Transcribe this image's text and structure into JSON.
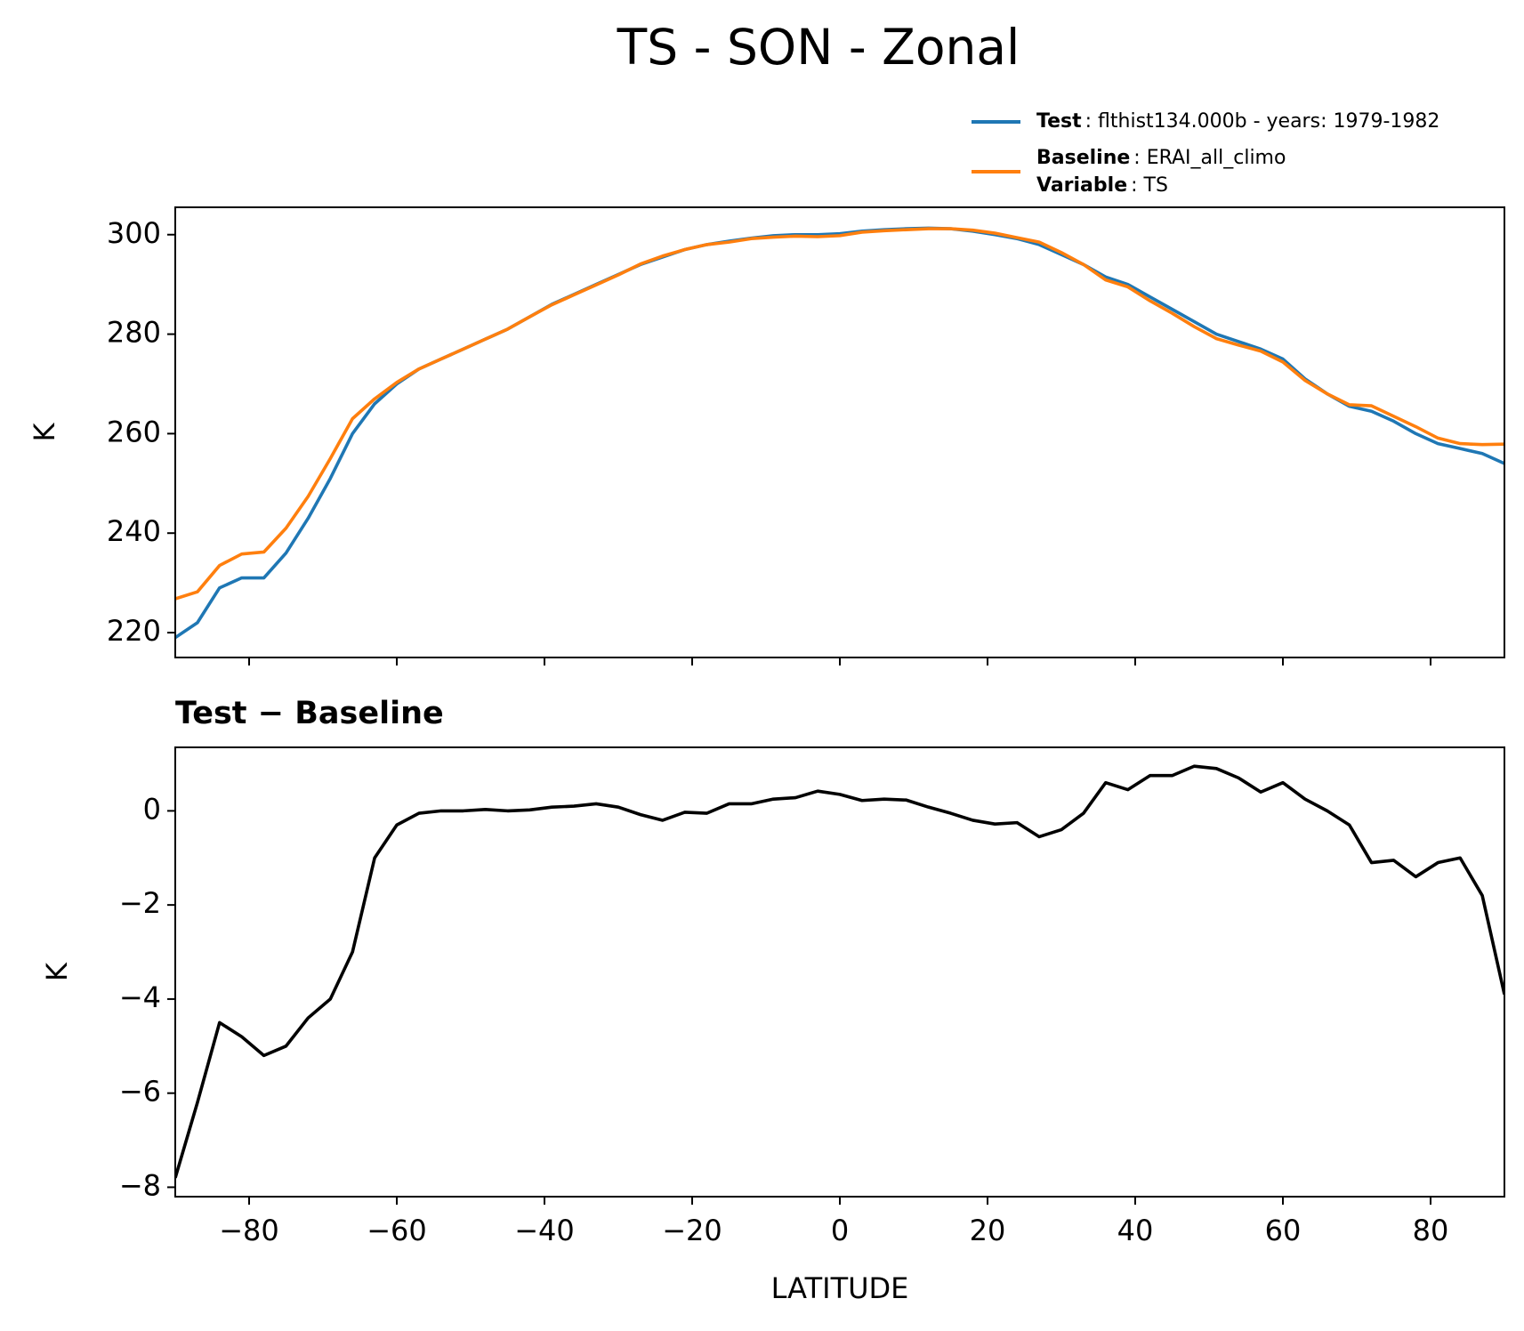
{
  "chart_data": [
    {
      "type": "line",
      "title": "TS - SON - Zonal",
      "ylabel": "K",
      "x": [
        -90,
        -87,
        -84,
        -81,
        -78,
        -75,
        -72,
        -69,
        -66,
        -63,
        -60,
        -57,
        -54,
        -51,
        -48,
        -45,
        -42,
        -39,
        -36,
        -33,
        -30,
        -27,
        -24,
        -21,
        -18,
        -15,
        -12,
        -9,
        -6,
        -3,
        0,
        3,
        6,
        9,
        12,
        15,
        18,
        21,
        24,
        27,
        30,
        33,
        36,
        39,
        42,
        45,
        48,
        51,
        54,
        57,
        60,
        63,
        66,
        69,
        72,
        75,
        78,
        81,
        84,
        87,
        90
      ],
      "series": [
        {
          "name": "Test",
          "description": ": flthist134.000b - years: 1979-1982",
          "color": "#1f77b4",
          "values": [
            219,
            222,
            229,
            231,
            231,
            236,
            243,
            251,
            260,
            266,
            270,
            273,
            275,
            277,
            279,
            281,
            283.5,
            286,
            288,
            290,
            292,
            294,
            295.5,
            297,
            298,
            298.7,
            299.3,
            299.8,
            300,
            300,
            300.2,
            300.7,
            301,
            301.2,
            301.3,
            301.2,
            300.7,
            300,
            299.2,
            298,
            296,
            294,
            291.5,
            290,
            287.5,
            285,
            282.5,
            280,
            278.5,
            277,
            275,
            271,
            268,
            265.5,
            264.5,
            262.5,
            260,
            258,
            257,
            256,
            254
          ]
        },
        {
          "name": "Baseline",
          "description": ": ERAI_all_climo",
          "color": "#ff7f0e",
          "values": [
            226.8,
            228.2,
            233.5,
            235.8,
            236.2,
            241,
            247.4,
            255,
            263,
            267,
            270.3,
            273,
            275,
            277,
            279,
            281,
            283.5,
            285.9,
            287.9,
            289.9,
            291.9,
            294.1,
            295.7,
            297,
            298,
            298.5,
            299.2,
            299.5,
            299.7,
            299.6,
            299.8,
            300.5,
            300.8,
            301,
            301.2,
            301.2,
            300.9,
            300.3,
            299.4,
            298.5,
            296.4,
            294,
            290.9,
            289.5,
            286.7,
            284.2,
            281.5,
            279.1,
            277.8,
            276.6,
            274.4,
            270.7,
            268,
            265.8,
            265.6,
            263.5,
            261.4,
            259.1,
            258,
            257.8,
            257.9
          ]
        }
      ],
      "legend_note": {
        "name": "Variable",
        "description": ": TS"
      },
      "xlim": [
        -90,
        90
      ],
      "xticks": [
        -80,
        -60,
        -40,
        -20,
        0,
        20,
        40,
        60,
        80
      ],
      "ylim": [
        215,
        305.5
      ],
      "yticks": [
        220,
        240,
        260,
        280,
        300
      ]
    },
    {
      "type": "line",
      "title": "Test − Baseline",
      "ylabel": "K",
      "xlabel": "LATITUDE",
      "x": [
        -90,
        -87,
        -84,
        -81,
        -78,
        -75,
        -72,
        -69,
        -66,
        -63,
        -60,
        -57,
        -54,
        -51,
        -48,
        -45,
        -42,
        -39,
        -36,
        -33,
        -30,
        -27,
        -24,
        -21,
        -18,
        -15,
        -12,
        -9,
        -6,
        -3,
        0,
        3,
        6,
        9,
        12,
        15,
        18,
        21,
        24,
        27,
        30,
        33,
        36,
        39,
        42,
        45,
        48,
        51,
        54,
        57,
        60,
        63,
        66,
        69,
        72,
        75,
        78,
        81,
        84,
        87,
        90
      ],
      "series": [
        {
          "color": "#000000",
          "values": [
            -7.8,
            -6.2,
            -4.5,
            -4.8,
            -5.2,
            -5.0,
            -4.4,
            -4.0,
            -3.0,
            -1.0,
            -0.3,
            -0.05,
            0,
            0,
            0.03,
            0,
            0.02,
            0.08,
            0.1,
            0.15,
            0.08,
            -0.08,
            -0.2,
            -0.03,
            -0.05,
            0.15,
            0.15,
            0.25,
            0.28,
            0.42,
            0.35,
            0.22,
            0.25,
            0.23,
            0.08,
            -0.05,
            -0.2,
            -0.28,
            -0.25,
            -0.55,
            -0.4,
            -0.05,
            0.6,
            0.45,
            0.75,
            0.75,
            0.95,
            0.9,
            0.7,
            0.4,
            0.6,
            0.25,
            0,
            -0.3,
            -1.1,
            -1.05,
            -1.4,
            -1.1,
            -1.0,
            -1.8,
            -3.9
          ]
        }
      ],
      "xlim": [
        -90,
        90
      ],
      "xticks": [
        {
          "value": -80,
          "label": "−80"
        },
        {
          "value": -60,
          "label": "−60"
        },
        {
          "value": -40,
          "label": "−40"
        },
        {
          "value": -20,
          "label": "−20"
        },
        0,
        20,
        40,
        60,
        80
      ],
      "ylim": [
        -8.2,
        1.35
      ],
      "yticks": [
        {
          "value": -8,
          "label": "−8"
        },
        {
          "value": -6,
          "label": "−6"
        },
        {
          "value": -4,
          "label": "−4"
        },
        {
          "value": -2,
          "label": "−2"
        },
        0
      ]
    }
  ]
}
